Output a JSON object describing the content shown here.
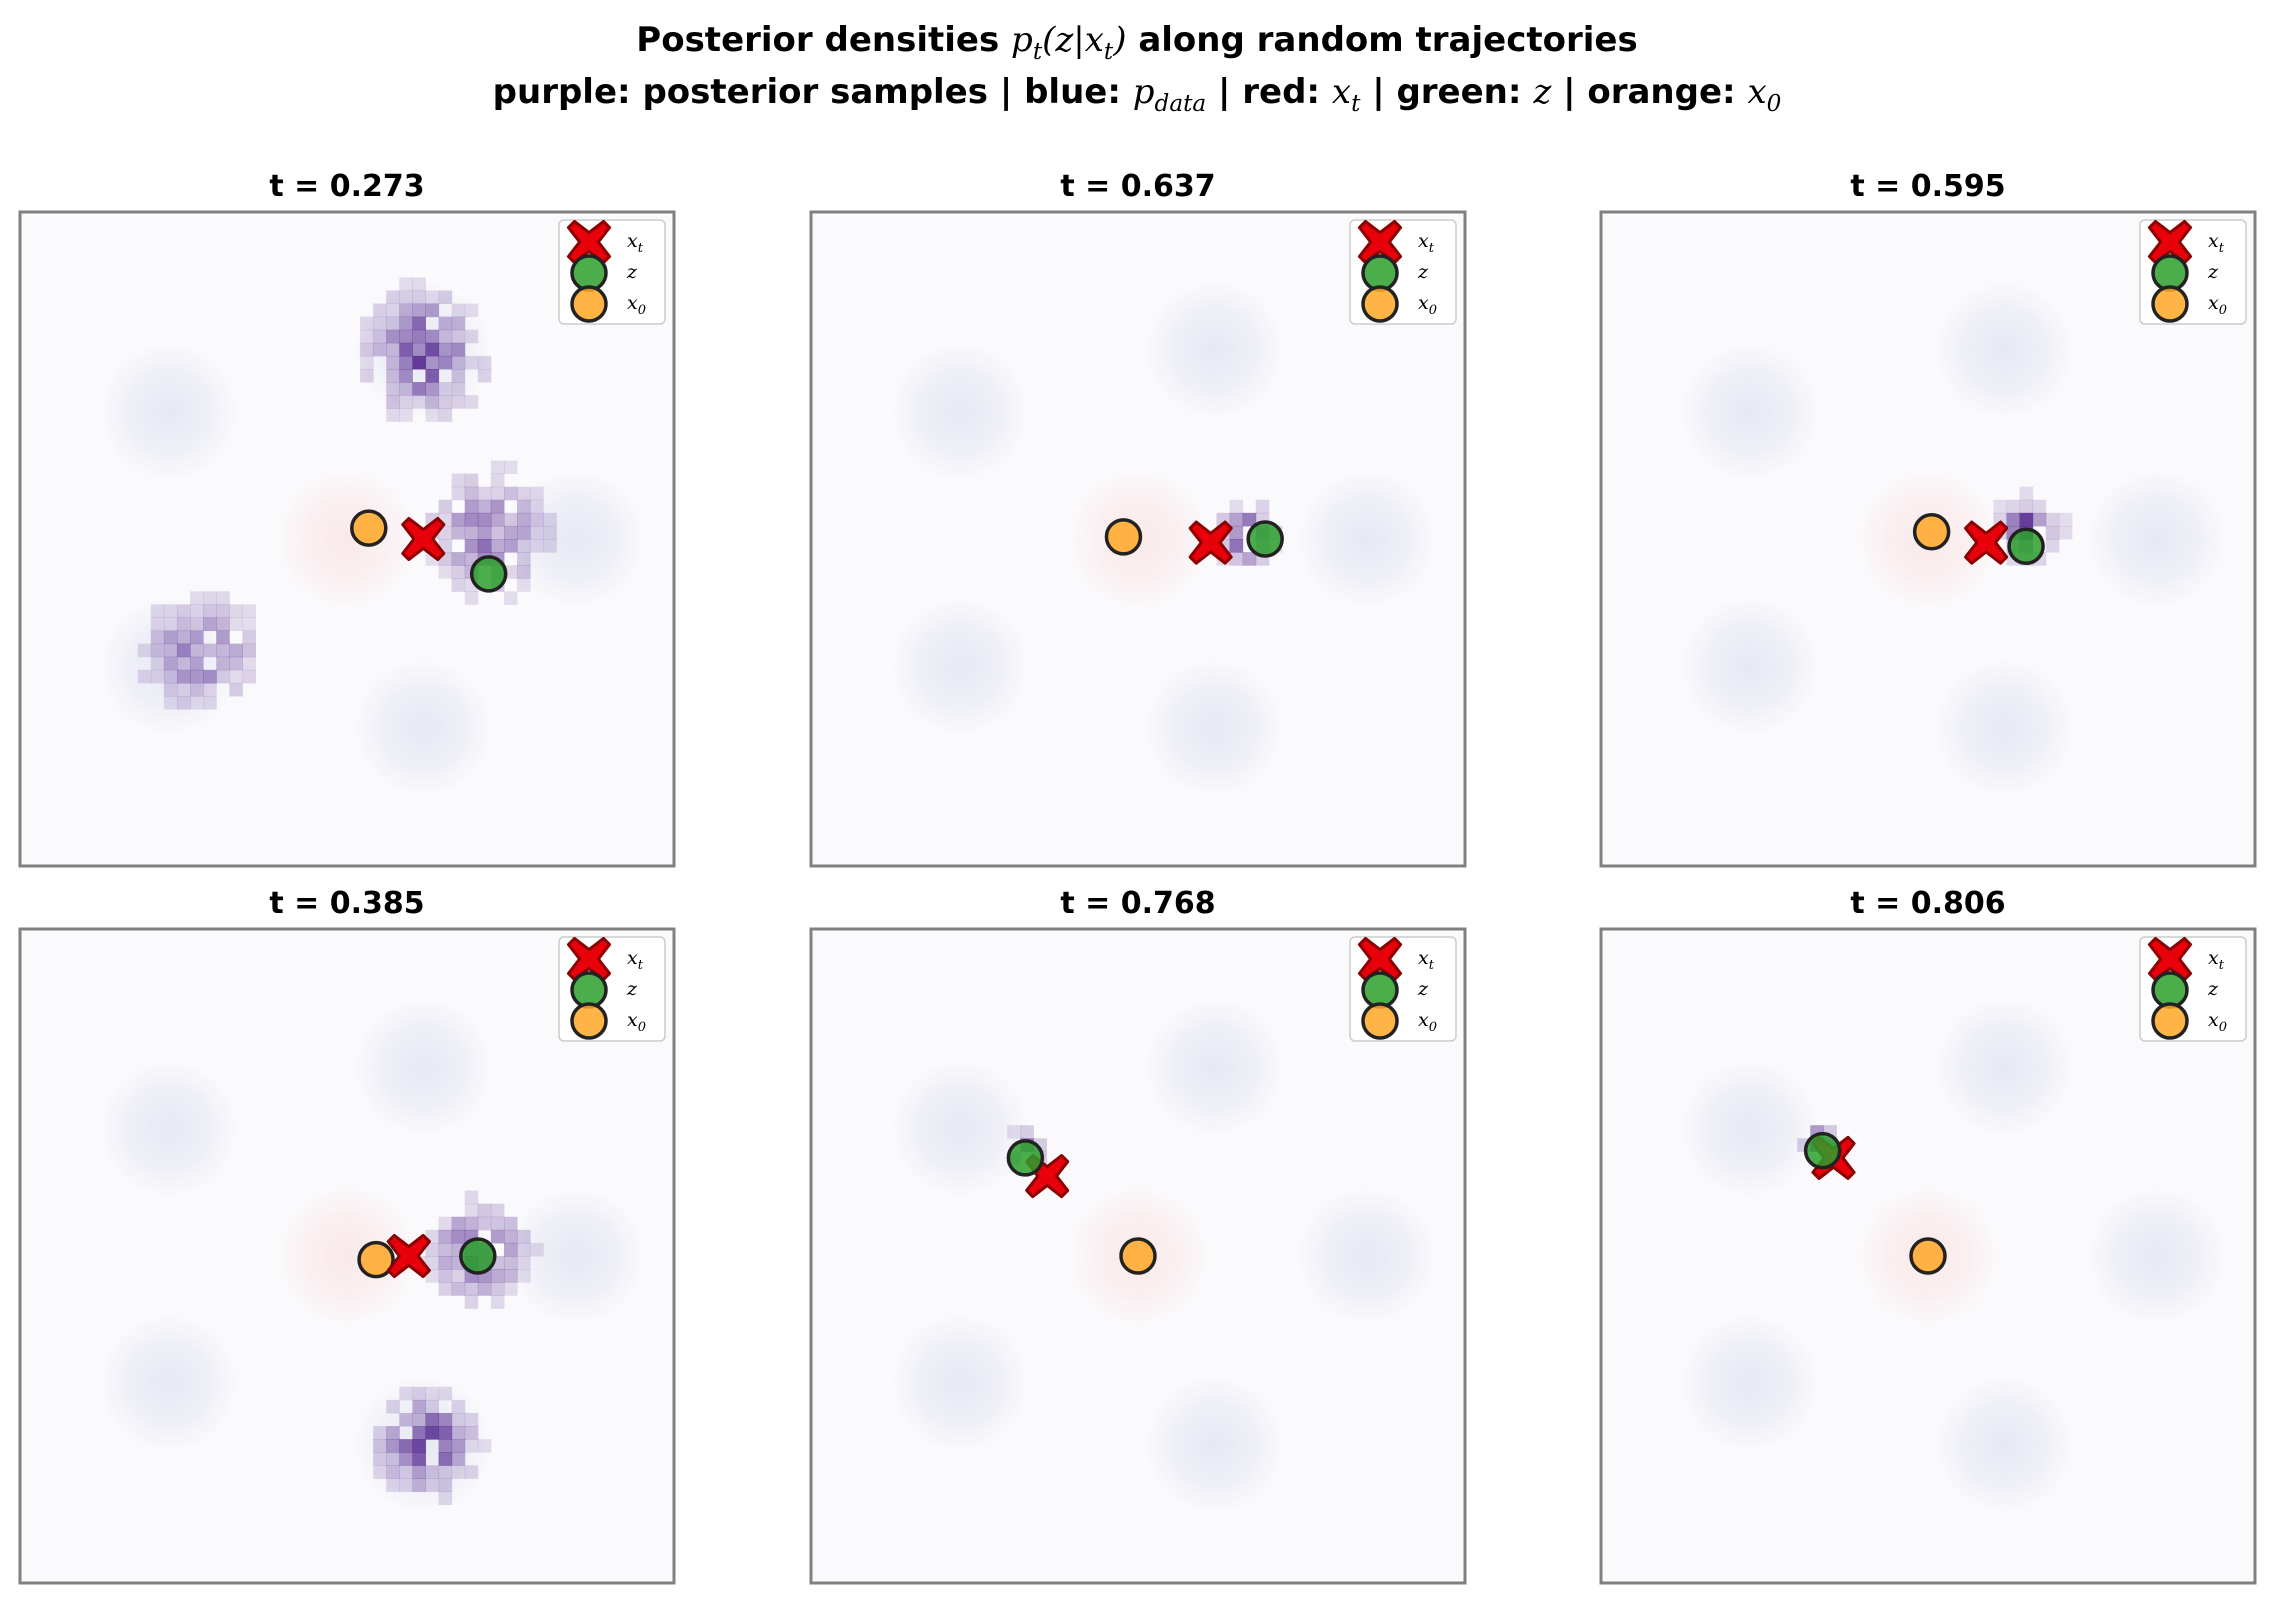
{
  "figure": {
    "title_line1_prefix": "Posterior densities ",
    "title_line1_math_p": "p",
    "title_line1_math_t": "t",
    "title_line1_math_args": "(z|x",
    "title_line1_math_args_sub": "t",
    "title_line1_math_close": ")",
    "title_line1_suffix": " along random trajectories",
    "title_line2_a": "purple: posterior samples | blue: ",
    "title_line2_pdata": "p",
    "title_line2_pdata_sub": "data",
    "title_line2_b": " | red: ",
    "title_line2_xt": "x",
    "title_line2_xt_sub": "t",
    "title_line2_c": " | green: ",
    "title_line2_z": "z",
    "title_line2_d": " | orange: ",
    "title_line2_x0": "x",
    "title_line2_x0_sub": "0"
  },
  "legend": [
    {
      "label": "x",
      "sub": "t",
      "marker": "x-cross",
      "color": "#e8000b"
    },
    {
      "label": "z",
      "sub": "",
      "marker": "circle",
      "color": "#2ca02c"
    },
    {
      "label": "x",
      "sub": "0",
      "marker": "circle",
      "color": "#ffa726"
    }
  ],
  "colors": {
    "posterior": "#54278f",
    "data_density": "#c9cde6",
    "prior_density": "#fbe0e0",
    "xt": "#e8000b",
    "z": "#2ca02c",
    "x0": "#ffa726",
    "frame": "#808080"
  },
  "chart_data": [
    {
      "type": "scatter",
      "title": "t = 0.273",
      "modes": [
        [
          -2.45,
          1.75
        ],
        [
          1.05,
          2.6
        ],
        [
          -2.45,
          -1.75
        ],
        [
          1.05,
          -2.6
        ],
        [
          3.15,
          0
        ]
      ],
      "xt": [
        1.05,
        0
      ],
      "z": [
        1.95,
        -0.48
      ],
      "x0": [
        0.3,
        0.15
      ],
      "posterior": [
        {
          "c": [
            1.05,
            2.55
          ],
          "s": 0.55,
          "w": 1.0
        },
        {
          "c": [
            1.95,
            0.05
          ],
          "s": 0.6,
          "w": 0.6
        },
        {
          "c": [
            -2.0,
            -1.55
          ],
          "s": 0.55,
          "w": 0.6
        }
      ]
    },
    {
      "type": "scatter",
      "title": "t = 0.637",
      "modes": [
        [
          -2.45,
          1.75
        ],
        [
          1.05,
          2.6
        ],
        [
          -2.45,
          -1.75
        ],
        [
          1.05,
          -2.6
        ],
        [
          3.15,
          0
        ]
      ],
      "xt": [
        1.0,
        -0.05
      ],
      "z": [
        1.75,
        0
      ],
      "x0": [
        -0.2,
        0.03
      ],
      "posterior": [
        {
          "c": [
            1.5,
            0.05
          ],
          "s": 0.28,
          "w": 1.0
        }
      ]
    },
    {
      "type": "scatter",
      "title": "t = 0.595",
      "modes": [
        [
          -2.45,
          1.75
        ],
        [
          1.05,
          2.6
        ],
        [
          -2.45,
          -1.75
        ],
        [
          1.05,
          -2.6
        ],
        [
          3.15,
          0
        ]
      ],
      "xt": [
        0.8,
        -0.05
      ],
      "z": [
        1.35,
        -0.1
      ],
      "x0": [
        0.05,
        0.1
      ],
      "posterior": [
        {
          "c": [
            1.4,
            0.15
          ],
          "s": 0.28,
          "w": 1.0
        }
      ]
    },
    {
      "type": "scatter",
      "title": "t = 0.385",
      "modes": [
        [
          -2.45,
          1.75
        ],
        [
          1.05,
          2.6
        ],
        [
          -2.45,
          -1.75
        ],
        [
          1.05,
          -2.6
        ],
        [
          3.15,
          0
        ]
      ],
      "xt": [
        0.85,
        0
      ],
      "z": [
        1.8,
        0
      ],
      "x0": [
        0.4,
        -0.05
      ],
      "posterior": [
        {
          "c": [
            1.8,
            0.05
          ],
          "s": 0.48,
          "w": 0.75
        },
        {
          "c": [
            1.1,
            -2.6
          ],
          "s": 0.45,
          "w": 1.0
        }
      ]
    },
    {
      "type": "scatter",
      "title": "t = 0.768",
      "modes": [
        [
          -2.45,
          1.75
        ],
        [
          1.05,
          2.6
        ],
        [
          -2.45,
          -1.75
        ],
        [
          1.05,
          -2.6
        ],
        [
          3.15,
          0
        ]
      ],
      "xt": [
        -1.25,
        1.1
      ],
      "z": [
        -1.55,
        1.35
      ],
      "x0": [
        0.0,
        0.0
      ],
      "posterior": [
        {
          "c": [
            -1.55,
            1.45
          ],
          "s": 0.18,
          "w": 1.0
        }
      ]
    },
    {
      "type": "scatter",
      "title": "t = 0.806",
      "modes": [
        [
          -2.45,
          1.75
        ],
        [
          1.05,
          2.6
        ],
        [
          -2.45,
          -1.75
        ],
        [
          1.05,
          -2.6
        ],
        [
          3.15,
          0
        ]
      ],
      "xt": [
        -1.3,
        1.35
      ],
      "z": [
        -1.45,
        1.45
      ],
      "x0": [
        0.0,
        0.0
      ],
      "posterior": [
        {
          "c": [
            -1.5,
            1.55
          ],
          "s": 0.15,
          "w": 1.0
        }
      ]
    }
  ]
}
